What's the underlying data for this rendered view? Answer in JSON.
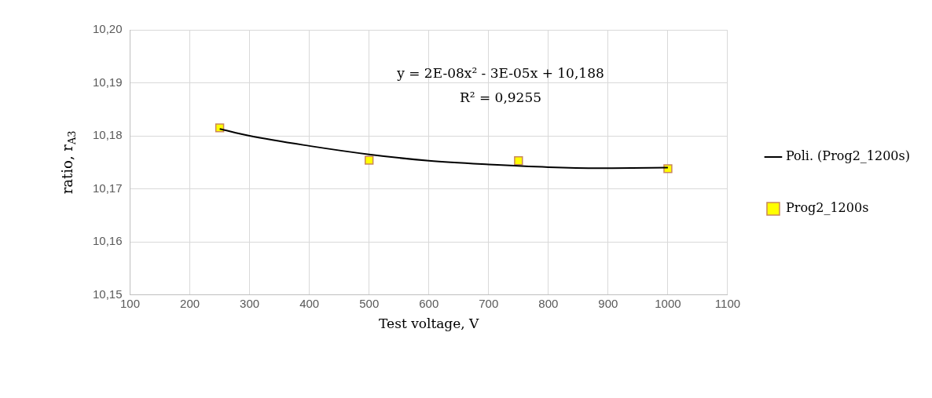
{
  "chart_data": {
    "type": "scatter",
    "xlabel": "Test voltage, V",
    "ylabel": "ratio, r$_{A3}$",
    "xlim": [
      100,
      1100
    ],
    "xticks": [
      100,
      200,
      300,
      400,
      500,
      600,
      700,
      800,
      900,
      1000,
      1100
    ],
    "ylim": [
      10.15,
      10.2
    ],
    "yticks": [
      {
        "value": 10.15,
        "label": "10,15"
      },
      {
        "value": 10.16,
        "label": "10,16"
      },
      {
        "value": 10.17,
        "label": "10,17"
      },
      {
        "value": 10.18,
        "label": "10,18"
      },
      {
        "value": 10.19,
        "label": "10,19"
      },
      {
        "value": 10.2,
        "label": "10,20"
      }
    ],
    "grid": true,
    "legend": "right",
    "marker": "square",
    "series": [
      {
        "name": "Prog2_1200s",
        "type": "scatter",
        "color": "#ffff00",
        "x": [
          250,
          500,
          750,
          1000
        ],
        "values": [
          10.1815,
          10.1754,
          10.1753,
          10.1738
        ]
      },
      {
        "name": "Poli. (Prog2_1200s)",
        "type": "line",
        "color": "#000000",
        "marker": "none",
        "x": [
          250,
          300,
          400,
          500,
          600,
          700,
          800,
          900,
          1000
        ],
        "values": [
          10.1813,
          10.18,
          10.1781,
          10.1765,
          10.1753,
          10.1746,
          10.1741,
          10.1739,
          10.174
        ]
      }
    ],
    "annotations": [
      "y = 2E-08x² - 3E-05x + 10,188",
      "R² = 0,9255"
    ]
  }
}
